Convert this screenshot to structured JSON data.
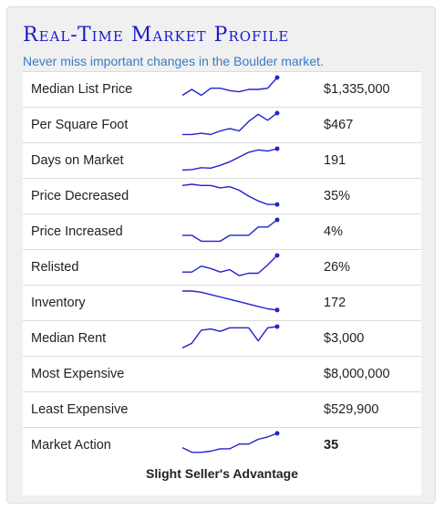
{
  "widget": {
    "title": "Real-Time Market Profile",
    "subtitle": "Never miss important changes in the Boulder market.",
    "line_color": "#2222cc",
    "rows": [
      {
        "label": "Median List Price",
        "value": "$1,335,000",
        "spark": [
          0.25,
          0.5,
          0.25,
          0.55,
          0.55,
          0.45,
          0.4,
          0.5,
          0.5,
          0.55,
          1
        ]
      },
      {
        "label": "Per Square Foot",
        "value": "$467",
        "spark": [
          0.1,
          0.1,
          0.15,
          0.1,
          0.25,
          0.35,
          0.25,
          0.65,
          0.95,
          0.7,
          1
        ]
      },
      {
        "label": "Days on Market",
        "value": "191",
        "spark": [
          0.1,
          0.12,
          0.2,
          0.18,
          0.3,
          0.45,
          0.65,
          0.85,
          0.95,
          0.9,
          1
        ]
      },
      {
        "label": "Price Decreased",
        "value": "35%",
        "spark": [
          0.95,
          1,
          0.95,
          0.95,
          0.85,
          0.9,
          0.75,
          0.5,
          0.3,
          0.15,
          0.15
        ]
      },
      {
        "label": "Price Increased",
        "value": "4%",
        "spark": [
          0.35,
          0.35,
          0.1,
          0.1,
          0.1,
          0.35,
          0.35,
          0.35,
          0.7,
          0.7,
          1
        ]
      },
      {
        "label": "Relisted",
        "value": "26%",
        "spark": [
          0.3,
          0.3,
          0.55,
          0.45,
          0.3,
          0.4,
          0.15,
          0.25,
          0.25,
          0.6,
          1
        ]
      },
      {
        "label": "Inventory",
        "value": "172",
        "spark": [
          1,
          1,
          0.95,
          0.85,
          0.75,
          0.65,
          0.55,
          0.45,
          0.35,
          0.25,
          0.2
        ]
      },
      {
        "label": "Median Rent",
        "value": "$3,000",
        "spark": [
          0.1,
          0.3,
          0.85,
          0.9,
          0.8,
          0.95,
          0.95,
          0.95,
          0.4,
          0.95,
          1
        ]
      },
      {
        "label": "Most Expensive",
        "value": "$8,000,000",
        "spark": null
      },
      {
        "label": "Least Expensive",
        "value": "$529,900",
        "spark": null
      },
      {
        "label": "Market Action",
        "value": "35",
        "spark": [
          0.4,
          0.2,
          0.2,
          0.25,
          0.35,
          0.35,
          0.55,
          0.55,
          0.75,
          0.85,
          1
        ]
      }
    ],
    "verdict": "Slight Seller's Advantage"
  }
}
